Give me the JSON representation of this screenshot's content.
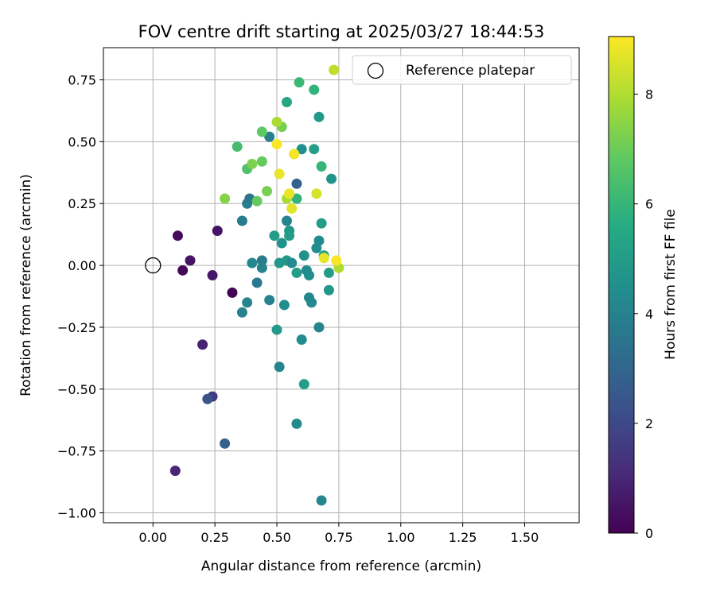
{
  "chart_data": {
    "type": "scatter",
    "title": "FOV centre drift starting at 2025/03/27 18:44:53",
    "xlabel": "Angular distance from reference (arcmin)",
    "ylabel": "Rotation from reference (arcmin)",
    "xlim": [
      -0.2,
      1.72
    ],
    "ylim": [
      -1.04,
      0.88
    ],
    "xticks": [
      0.0,
      0.25,
      0.5,
      0.75,
      1.0,
      1.25,
      1.5
    ],
    "xtick_labels": [
      "0.00",
      "0.25",
      "0.50",
      "0.75",
      "1.00",
      "1.25",
      "1.50"
    ],
    "yticks": [
      0.75,
      0.5,
      0.25,
      0.0,
      -0.25,
      -0.5,
      -0.75,
      -1.0
    ],
    "ytick_labels": [
      "0.75",
      "0.50",
      "0.25",
      "0.00",
      "−0.25",
      "−0.50",
      "−0.75",
      "−1.00"
    ],
    "grid": true,
    "legend": {
      "label": "Reference platepar",
      "position": "top-right"
    },
    "reference_point": {
      "x": 0.0,
      "y": 0.0
    },
    "colorbar": {
      "label": "Hours from first FF file",
      "range": [
        0,
        9.05
      ],
      "ticks": [
        0,
        2,
        4,
        6,
        8
      ],
      "tick_labels": [
        "0",
        "2",
        "4",
        "6",
        "8"
      ],
      "colormap": "viridis"
    },
    "points": [
      {
        "x": 0.1,
        "y": 0.12,
        "h": 0.3
      },
      {
        "x": 0.12,
        "y": -0.02,
        "h": 0.2
      },
      {
        "x": 0.15,
        "y": 0.02,
        "h": 0.5
      },
      {
        "x": 0.24,
        "y": -0.04,
        "h": 0.6
      },
      {
        "x": 0.26,
        "y": 0.14,
        "h": 0.5
      },
      {
        "x": 0.32,
        "y": -0.11,
        "h": 0.1
      },
      {
        "x": 0.2,
        "y": -0.32,
        "h": 0.9
      },
      {
        "x": 0.09,
        "y": -0.83,
        "h": 1.0
      },
      {
        "x": 0.24,
        "y": -0.53,
        "h": 1.6
      },
      {
        "x": 0.22,
        "y": -0.54,
        "h": 2.4
      },
      {
        "x": 0.29,
        "y": -0.72,
        "h": 2.8
      },
      {
        "x": 0.36,
        "y": 0.18,
        "h": 3.8
      },
      {
        "x": 0.38,
        "y": 0.25,
        "h": 3.9
      },
      {
        "x": 0.39,
        "y": 0.27,
        "h": 3.6
      },
      {
        "x": 0.4,
        "y": 0.01,
        "h": 4.2
      },
      {
        "x": 0.42,
        "y": -0.07,
        "h": 3.7
      },
      {
        "x": 0.44,
        "y": 0.02,
        "h": 3.8
      },
      {
        "x": 0.44,
        "y": -0.01,
        "h": 4.0
      },
      {
        "x": 0.38,
        "y": -0.15,
        "h": 4.1
      },
      {
        "x": 0.36,
        "y": -0.19,
        "h": 4.0
      },
      {
        "x": 0.47,
        "y": -0.14,
        "h": 4.0
      },
      {
        "x": 0.49,
        "y": 0.12,
        "h": 5.0
      },
      {
        "x": 0.51,
        "y": 0.01,
        "h": 4.8
      },
      {
        "x": 0.52,
        "y": 0.09,
        "h": 4.6
      },
      {
        "x": 0.53,
        "y": -0.16,
        "h": 4.4
      },
      {
        "x": 0.54,
        "y": 0.18,
        "h": 4.1
      },
      {
        "x": 0.55,
        "y": 0.14,
        "h": 4.8
      },
      {
        "x": 0.55,
        "y": 0.12,
        "h": 5.0
      },
      {
        "x": 0.54,
        "y": 0.02,
        "h": 4.9
      },
      {
        "x": 0.56,
        "y": 0.01,
        "h": 4.3
      },
      {
        "x": 0.58,
        "y": -0.03,
        "h": 5.0
      },
      {
        "x": 0.6,
        "y": -0.3,
        "h": 4.4
      },
      {
        "x": 0.61,
        "y": 0.04,
        "h": 4.6
      },
      {
        "x": 0.62,
        "y": -0.02,
        "h": 4.3
      },
      {
        "x": 0.63,
        "y": -0.04,
        "h": 4.4
      },
      {
        "x": 0.63,
        "y": -0.13,
        "h": 4.2
      },
      {
        "x": 0.64,
        "y": -0.15,
        "h": 4.3
      },
      {
        "x": 0.66,
        "y": 0.07,
        "h": 4.4
      },
      {
        "x": 0.67,
        "y": 0.1,
        "h": 4.3
      },
      {
        "x": 0.68,
        "y": 0.17,
        "h": 5.0
      },
      {
        "x": 0.69,
        "y": 0.04,
        "h": 5.1
      },
      {
        "x": 0.71,
        "y": -0.03,
        "h": 5.0
      },
      {
        "x": 0.71,
        "y": -0.1,
        "h": 4.8
      },
      {
        "x": 0.72,
        "y": 0.35,
        "h": 4.7
      },
      {
        "x": 0.67,
        "y": -0.25,
        "h": 4.1
      },
      {
        "x": 0.5,
        "y": -0.26,
        "h": 4.9
      },
      {
        "x": 0.51,
        "y": -0.41,
        "h": 4.1
      },
      {
        "x": 0.61,
        "y": -0.48,
        "h": 5.1
      },
      {
        "x": 0.58,
        "y": -0.64,
        "h": 4.3
      },
      {
        "x": 0.68,
        "y": -0.95,
        "h": 4.2
      },
      {
        "x": 0.47,
        "y": 0.52,
        "h": 3.9
      },
      {
        "x": 0.58,
        "y": 0.33,
        "h": 2.9
      },
      {
        "x": 0.6,
        "y": 0.47,
        "h": 4.5
      },
      {
        "x": 0.65,
        "y": 0.47,
        "h": 5.1
      },
      {
        "x": 0.67,
        "y": 0.6,
        "h": 4.9
      },
      {
        "x": 0.68,
        "y": 0.4,
        "h": 6.0
      },
      {
        "x": 0.58,
        "y": 0.27,
        "h": 5.9
      },
      {
        "x": 0.54,
        "y": 0.66,
        "h": 5.4
      },
      {
        "x": 0.65,
        "y": 0.71,
        "h": 5.9
      },
      {
        "x": 0.59,
        "y": 0.74,
        "h": 6.1
      },
      {
        "x": 0.34,
        "y": 0.48,
        "h": 6.3
      },
      {
        "x": 0.38,
        "y": 0.39,
        "h": 6.5
      },
      {
        "x": 0.42,
        "y": 0.26,
        "h": 6.9
      },
      {
        "x": 0.44,
        "y": 0.42,
        "h": 6.9
      },
      {
        "x": 0.44,
        "y": 0.54,
        "h": 6.8
      },
      {
        "x": 0.52,
        "y": 0.56,
        "h": 7.2
      },
      {
        "x": 0.4,
        "y": 0.41,
        "h": 7.3
      },
      {
        "x": 0.46,
        "y": 0.3,
        "h": 7.2
      },
      {
        "x": 0.29,
        "y": 0.27,
        "h": 7.4
      },
      {
        "x": 0.5,
        "y": 0.58,
        "h": 7.9
      },
      {
        "x": 0.54,
        "y": 0.27,
        "h": 7.9
      },
      {
        "x": 0.57,
        "y": 0.45,
        "h": 7.2
      },
      {
        "x": 0.66,
        "y": 0.29,
        "h": 8.5
      },
      {
        "x": 0.75,
        "y": -0.01,
        "h": 8.0
      },
      {
        "x": 0.73,
        "y": 0.79,
        "h": 8.2
      },
      {
        "x": 0.5,
        "y": 0.49,
        "h": 9.0
      },
      {
        "x": 0.51,
        "y": 0.37,
        "h": 8.8
      },
      {
        "x": 0.55,
        "y": 0.29,
        "h": 8.8
      },
      {
        "x": 0.56,
        "y": 0.23,
        "h": 8.7
      },
      {
        "x": 0.57,
        "y": 0.45,
        "h": 8.9
      },
      {
        "x": 0.69,
        "y": 0.03,
        "h": 8.8
      },
      {
        "x": 0.74,
        "y": 0.02,
        "h": 9.0
      }
    ]
  }
}
